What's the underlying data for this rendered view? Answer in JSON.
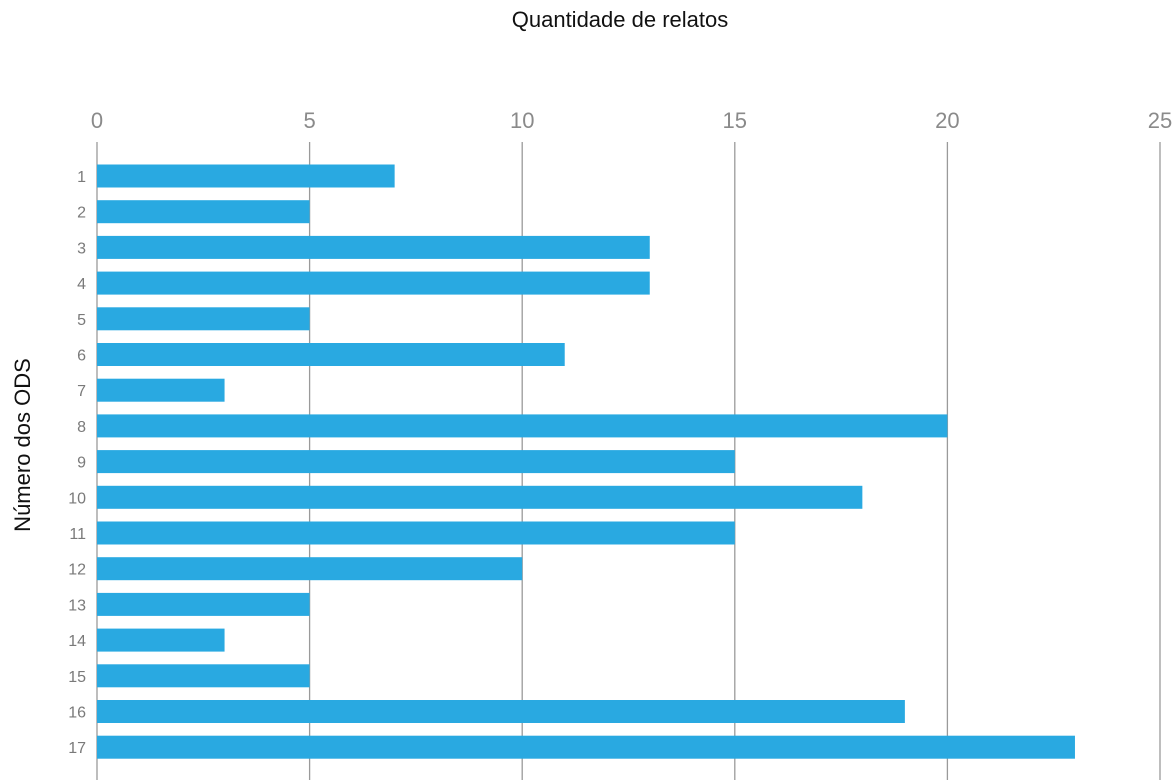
{
  "chart_data": {
    "type": "bar",
    "orientation": "horizontal",
    "title": "Quantidade de relatos",
    "xlabel": "",
    "ylabel": "Número dos ODS",
    "categories": [
      "1",
      "2",
      "3",
      "4",
      "5",
      "6",
      "7",
      "8",
      "9",
      "10",
      "11",
      "12",
      "13",
      "14",
      "15",
      "16",
      "17"
    ],
    "values": [
      7,
      5,
      13,
      13,
      5,
      11,
      3,
      20,
      15,
      18,
      15,
      10,
      5,
      3,
      5,
      19,
      23
    ],
    "xlim": [
      0,
      25
    ],
    "xticks": [
      "0",
      "5",
      "10",
      "15",
      "20",
      "25"
    ],
    "x_axis_position": "top",
    "grid": true,
    "bar_color": "#29a9e1"
  }
}
